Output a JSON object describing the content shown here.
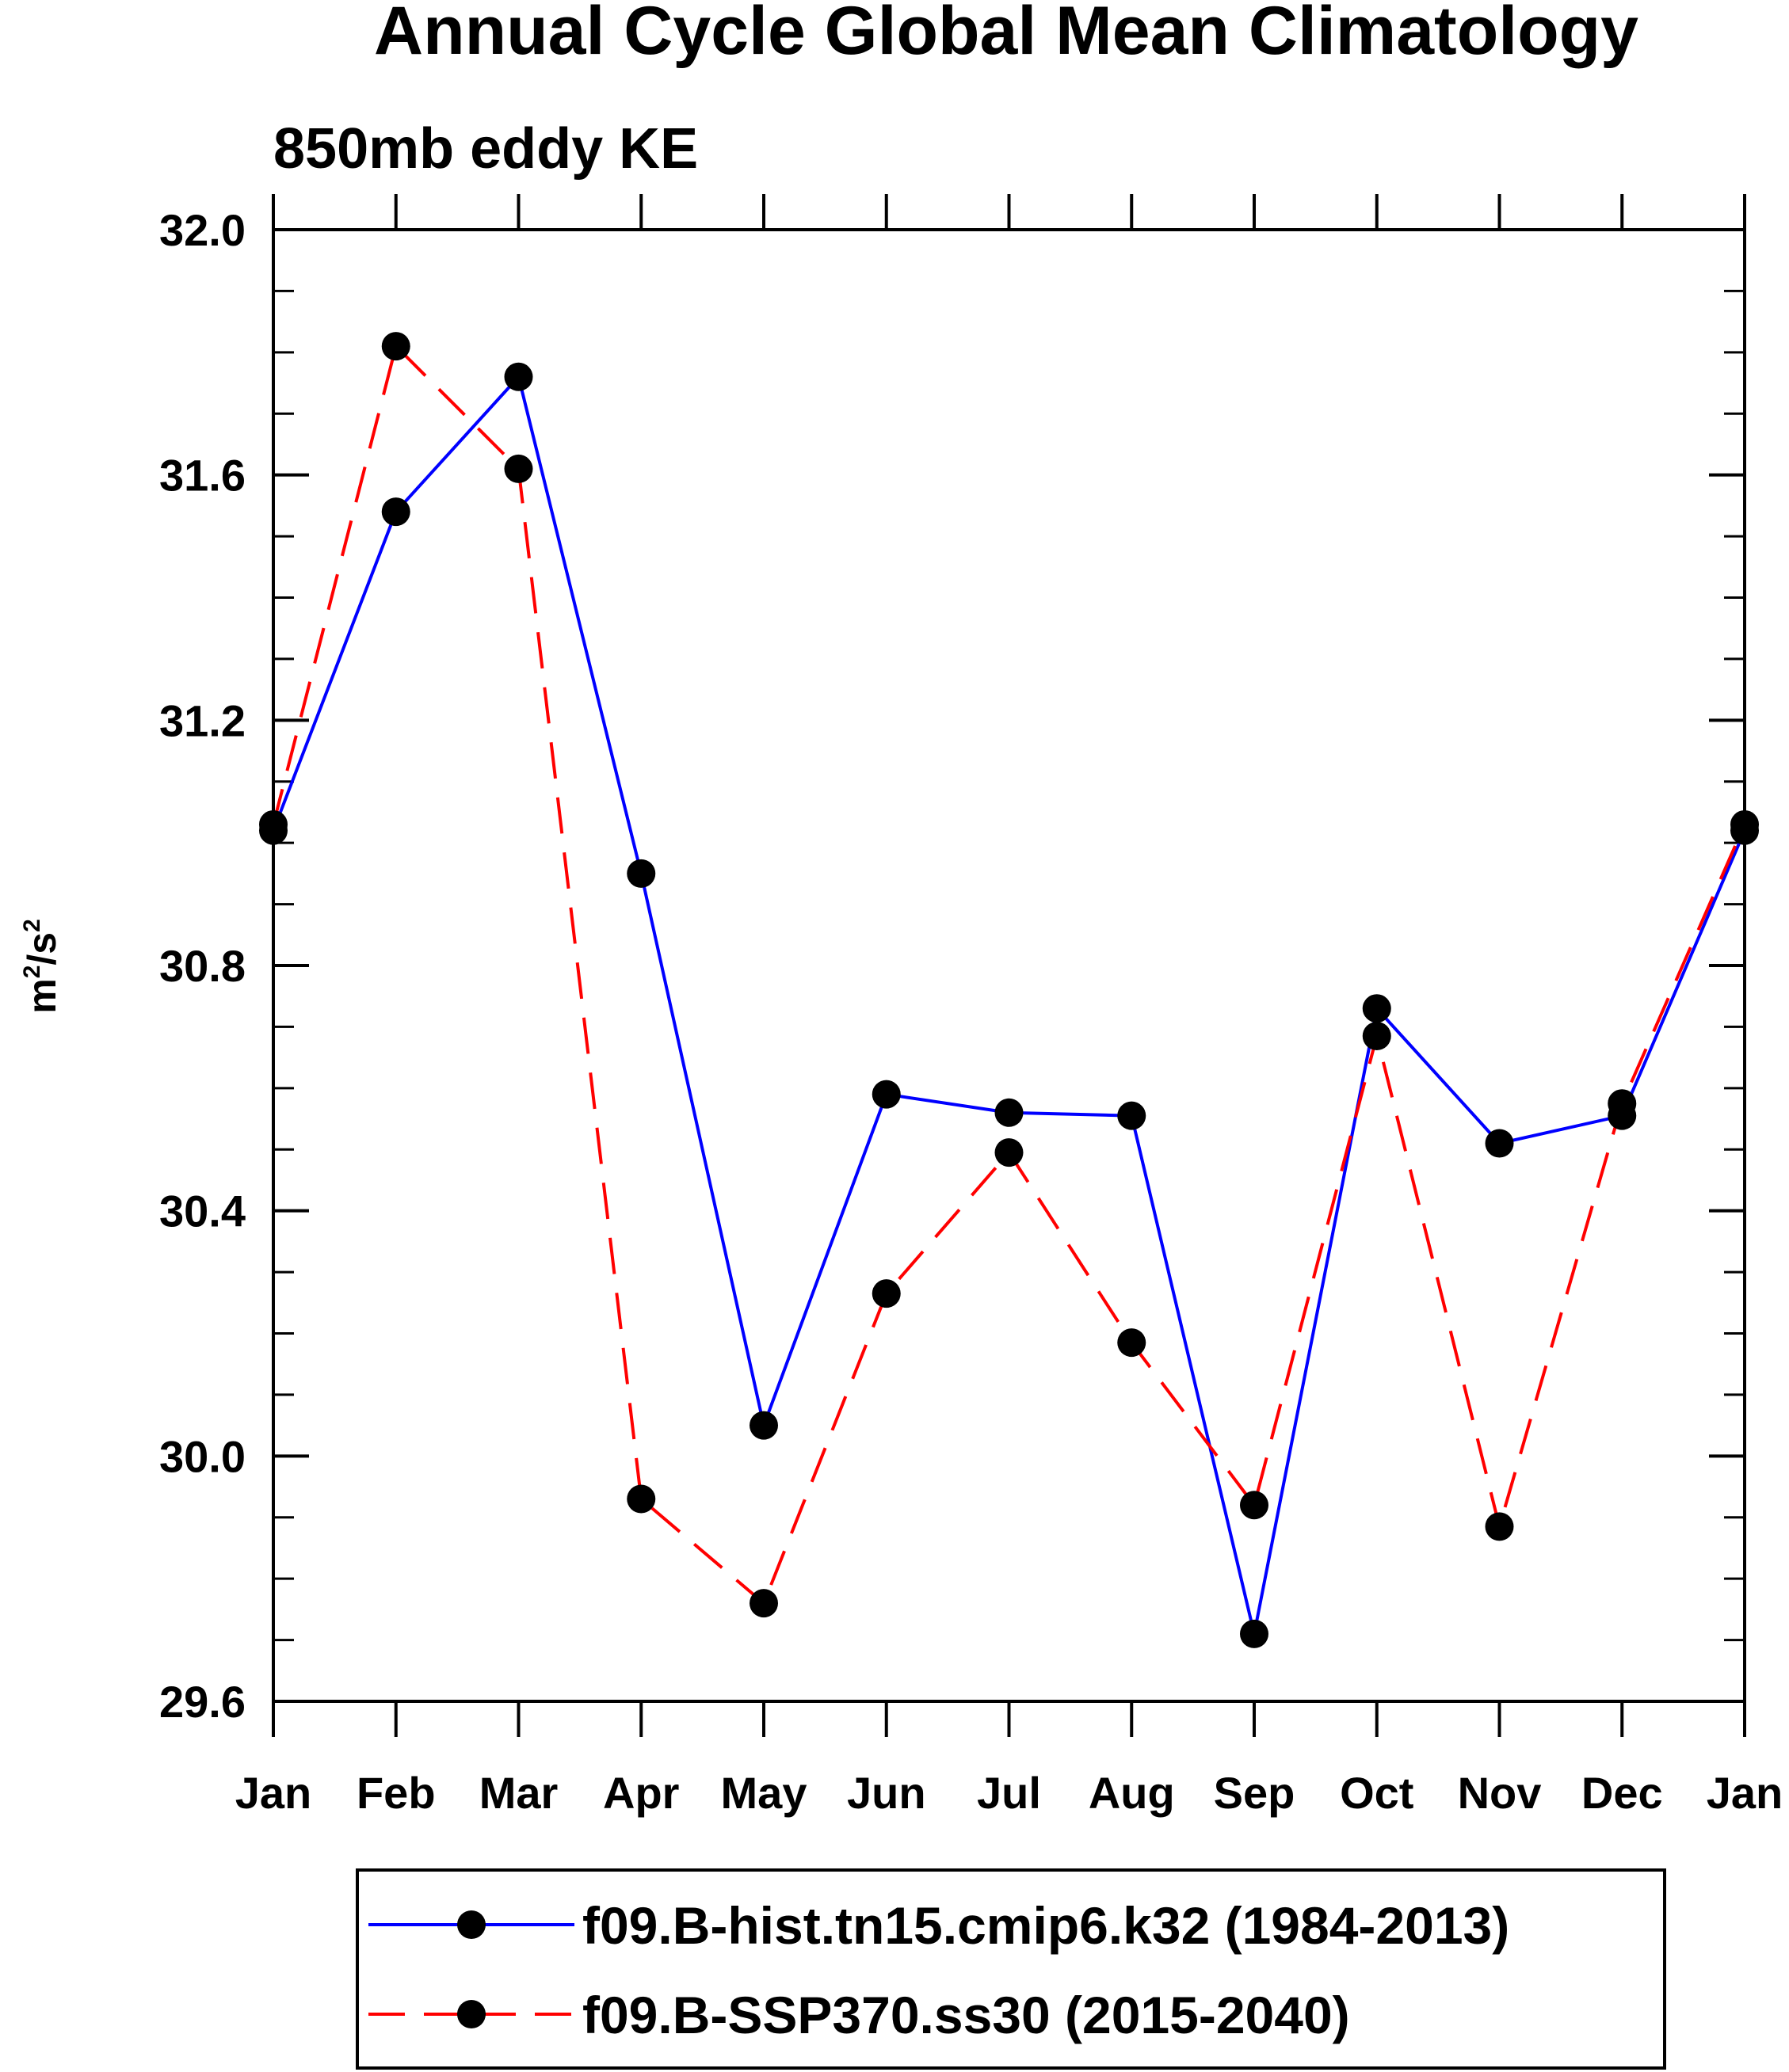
{
  "chart_data": {
    "type": "line",
    "title": "Annual Cycle Global Mean Climatology",
    "subtitle": "850mb eddy KE",
    "ylabel": {
      "base": "m",
      "sup1": "2",
      "mid": "/s",
      "sup2": "2"
    },
    "xlabel": "",
    "categories": [
      "Jan",
      "Feb",
      "Mar",
      "Apr",
      "May",
      "Jun",
      "Jul",
      "Aug",
      "Sep",
      "Oct",
      "Nov",
      "Dec",
      "Jan"
    ],
    "ylim": [
      29.6,
      32.0
    ],
    "yticks": [
      29.6,
      30.0,
      30.4,
      30.8,
      31.2,
      31.6,
      32.0
    ],
    "ytick_labels": [
      "29.6",
      "30.0",
      "30.4",
      "30.8",
      "31.2",
      "31.6",
      "32.0"
    ],
    "y_minor_step": 0.1,
    "grid": false,
    "legend_position": "bottom",
    "series": [
      {
        "name": "f09.B-hist.tn15.cmip6.k32 (1984-2013)",
        "color": "#0000ff",
        "line_style": "solid",
        "marker": "filled-circle",
        "values": [
          31.02,
          31.54,
          31.76,
          30.95,
          30.05,
          30.59,
          30.56,
          30.555,
          29.71,
          30.73,
          30.51,
          30.555,
          31.02
        ]
      },
      {
        "name": "f09.B-SSP370.ss30 (2015-2040)",
        "color": "#ff0000",
        "line_style": "dashed",
        "marker": "filled-circle",
        "values": [
          31.03,
          31.81,
          31.61,
          29.93,
          29.76,
          30.265,
          30.495,
          30.185,
          29.92,
          30.685,
          29.885,
          30.575,
          31.03
        ]
      }
    ]
  }
}
